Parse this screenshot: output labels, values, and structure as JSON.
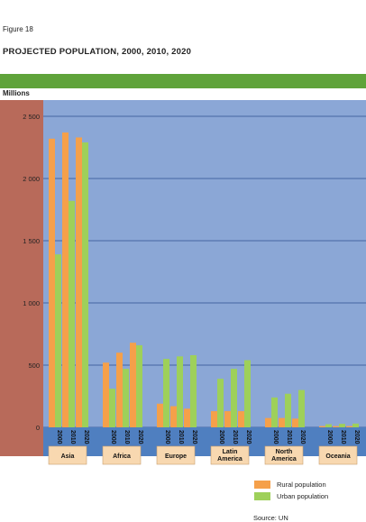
{
  "figure_label": "Figure 18",
  "title": "PROJECTED POPULATION, 2000, 2010, 2020",
  "colors": {
    "rural": "#f5a04a",
    "urban": "#9ed05a",
    "panel": "#8ba7d6",
    "side": "#b86a5a",
    "band": "#4f7fc0",
    "header_green": "#5fa33a",
    "label_box": "#f8d8b0"
  },
  "chart_data": {
    "type": "bar",
    "ylabel": "Millions",
    "ylim": [
      0,
      2500
    ],
    "yticks": [
      "0",
      "500",
      "1 000",
      "1 500",
      "2 000",
      "2 500"
    ],
    "grid": true,
    "regions": [
      {
        "name": "Asia",
        "years": [
          "2000",
          "2010",
          "2020"
        ],
        "rural": [
          2320,
          2370,
          2330
        ],
        "urban": [
          1390,
          1820,
          2290
        ]
      },
      {
        "name": "Africa",
        "years": [
          "2000",
          "2010",
          "2020"
        ],
        "rural": [
          520,
          600,
          680
        ],
        "urban": [
          310,
          470,
          660
        ]
      },
      {
        "name": "Europe",
        "years": [
          "2000",
          "2010",
          "2020"
        ],
        "rural": [
          190,
          170,
          150
        ],
        "urban": [
          550,
          570,
          580
        ]
      },
      {
        "name": "Latin America",
        "years": [
          "2000",
          "2010",
          "2020"
        ],
        "rural": [
          130,
          130,
          130
        ],
        "urban": [
          390,
          470,
          540
        ]
      },
      {
        "name": "North America",
        "years": [
          "2000",
          "2010",
          "2020"
        ],
        "rural": [
          75,
          75,
          70
        ],
        "urban": [
          240,
          270,
          300
        ]
      },
      {
        "name": "Oceania",
        "years": [
          "2000",
          "2010",
          "2020"
        ],
        "rural": [
          10,
          10,
          10
        ],
        "urban": [
          25,
          28,
          30
        ]
      }
    ],
    "series": [
      {
        "name": "Rural population",
        "key": "rural"
      },
      {
        "name": "Urban population",
        "key": "urban"
      }
    ]
  },
  "legend": {
    "rural_label": "Rural population",
    "urban_label": "Urban population"
  },
  "source": "Source: UN"
}
